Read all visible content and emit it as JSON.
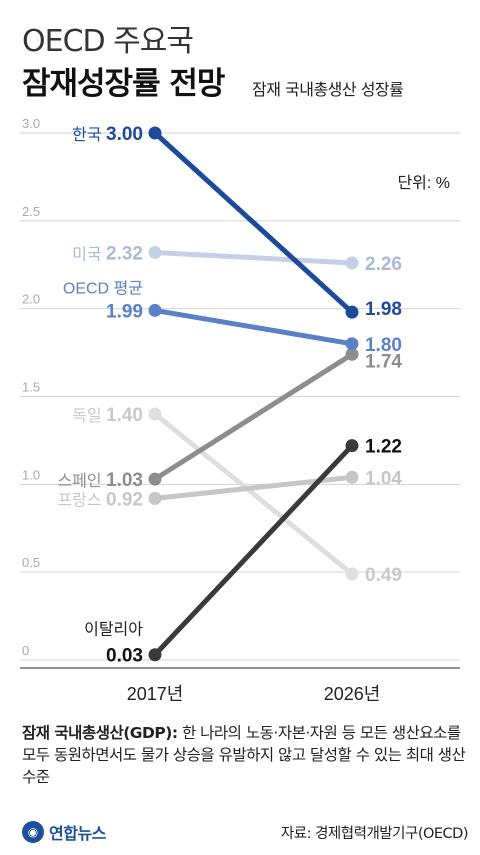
{
  "header": {
    "title_line1": "OECD 주요국",
    "title_line2": "잠재성장률 전망",
    "subtitle": "잠재 국내총생산 성장률"
  },
  "unit_label": "단위: %",
  "definition": {
    "term": "잠재 국내총생산(GDP):",
    "text": " 한 나라의 노동·자본·자원 등 모든 생산요소를 모두 동원하면서도 물가 상승을 유발하지 않고 달성할 수 있는 최대 생산 수준"
  },
  "logo_text": "연합뉴스",
  "source": "자료: 경제협력개발기구(OECD)",
  "colors": {
    "korea": "#1d4a9b",
    "usa": "#c3d0e6",
    "oecd": "#5a80c6",
    "germany": "#dedede",
    "spain": "#8d8d8d",
    "france": "#c6c6c6",
    "italy": "#3a3a3a"
  },
  "chart_data": {
    "type": "line",
    "categories": [
      "2017년",
      "2026년"
    ],
    "ylim": [
      0,
      3.0
    ],
    "yticks": [
      "0",
      "0.5",
      "1.0",
      "1.5",
      "2.0",
      "2.5",
      "3.0"
    ],
    "grid": true,
    "series": [
      {
        "name": "한국",
        "values": [
          3.0,
          1.98
        ],
        "labels": [
          "3.00",
          "1.98"
        ],
        "color": "#1d4a9b"
      },
      {
        "name": "미국",
        "values": [
          2.32,
          2.26
        ],
        "labels": [
          "2.32",
          "2.26"
        ],
        "color": "#c3d0e6"
      },
      {
        "name": "OECD 평균",
        "values": [
          1.99,
          1.8
        ],
        "labels": [
          "1.99",
          "1.80"
        ],
        "color": "#5a80c6"
      },
      {
        "name": "독일",
        "values": [
          1.4,
          0.49
        ],
        "labels": [
          "1.40",
          "0.49"
        ],
        "color": "#dedede"
      },
      {
        "name": "스페인",
        "values": [
          1.03,
          1.74
        ],
        "labels": [
          "1.03",
          "1.74"
        ],
        "color": "#8d8d8d"
      },
      {
        "name": "프랑스",
        "values": [
          0.92,
          1.04
        ],
        "labels": [
          "0.92",
          "1.04"
        ],
        "color": "#c6c6c6"
      },
      {
        "name": "이탈리아",
        "values": [
          0.03,
          1.22
        ],
        "labels": [
          "0.03",
          "1.22"
        ],
        "color": "#3a3a3a"
      }
    ]
  }
}
